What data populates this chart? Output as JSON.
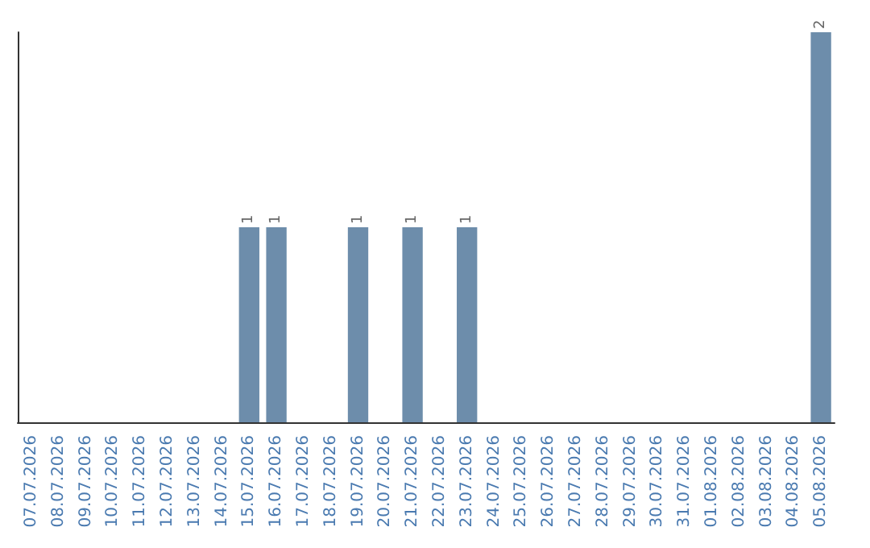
{
  "chart_data": {
    "type": "bar",
    "categories": [
      "07.07.2026",
      "08.07.2026",
      "09.07.2026",
      "10.07.2026",
      "11.07.2026",
      "12.07.2026",
      "13.07.2026",
      "14.07.2026",
      "15.07.2026",
      "16.07.2026",
      "17.07.2026",
      "18.07.2026",
      "19.07.2026",
      "20.07.2026",
      "21.07.2026",
      "22.07.2026",
      "23.07.2026",
      "24.07.2026",
      "25.07.2026",
      "26.07.2026",
      "27.07.2026",
      "28.07.2026",
      "29.07.2026",
      "30.07.2026",
      "31.07.2026",
      "01.08.2026",
      "02.08.2026",
      "03.08.2026",
      "04.08.2026",
      "05.08.2026"
    ],
    "values": [
      0,
      0,
      0,
      0,
      0,
      0,
      0,
      0,
      1,
      1,
      0,
      0,
      1,
      0,
      1,
      0,
      1,
      0,
      0,
      0,
      0,
      0,
      0,
      0,
      0,
      0,
      0,
      0,
      0,
      2
    ],
    "value_labels": [
      null,
      null,
      null,
      null,
      null,
      null,
      null,
      null,
      "1",
      "1",
      null,
      null,
      "1",
      null,
      "1",
      null,
      "1",
      null,
      null,
      null,
      null,
      null,
      null,
      null,
      null,
      null,
      null,
      null,
      null,
      "2"
    ],
    "color": "#6d8dab",
    "tick_labels": "x"
  }
}
